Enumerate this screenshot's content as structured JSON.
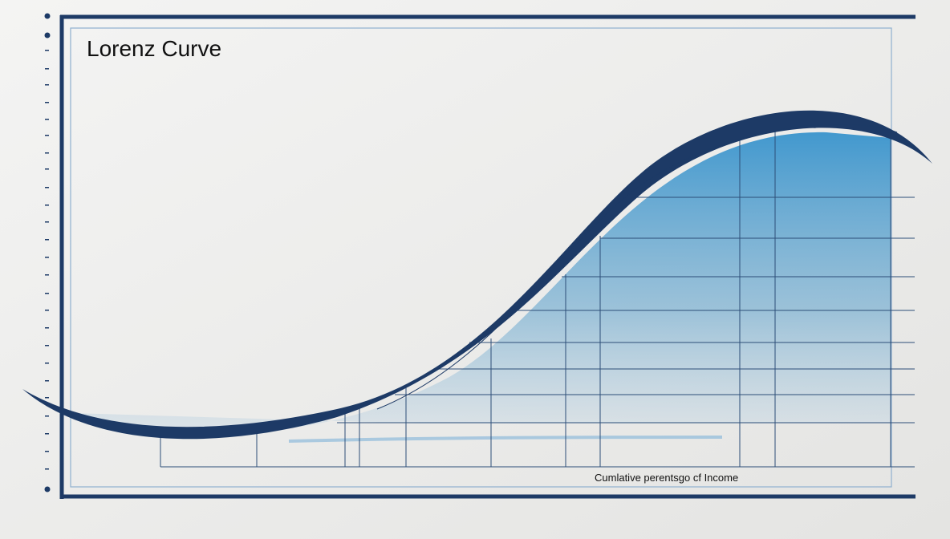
{
  "title": "Lorenz Curve",
  "x_axis_label": "Cumlative perentsgo cf Income"
}
